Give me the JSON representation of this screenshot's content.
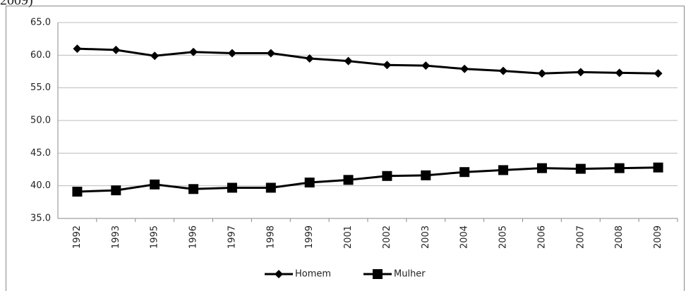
{
  "chart_data": {
    "type": "line",
    "title": "2009)",
    "categories": [
      "1992",
      "1993",
      "1995",
      "1996",
      "1997",
      "1998",
      "1999",
      "2001",
      "2002",
      "2003",
      "2004",
      "2005",
      "2006",
      "2007",
      "2008",
      "2009"
    ],
    "series": [
      {
        "name": "Homem",
        "color": "#000000",
        "marker": "diamond",
        "values": [
          61.0,
          60.8,
          59.9,
          60.5,
          60.3,
          60.3,
          59.5,
          59.1,
          58.5,
          58.4,
          57.9,
          57.6,
          57.2,
          57.4,
          57.3,
          57.2
        ]
      },
      {
        "name": "Mulher",
        "color": "#000000",
        "marker": "square",
        "values": [
          39.1,
          39.3,
          40.2,
          39.5,
          39.7,
          39.7,
          40.5,
          40.9,
          41.5,
          41.6,
          42.1,
          42.4,
          42.7,
          42.6,
          42.7,
          42.8
        ]
      }
    ],
    "ylim": [
      35,
      65
    ],
    "yticks": [
      {
        "value": 35,
        "label": "35.0"
      },
      {
        "value": 40,
        "label": "40.0"
      },
      {
        "value": 45,
        "label": "45.0"
      },
      {
        "value": 50,
        "label": "50.0"
      },
      {
        "value": 55,
        "label": "55.0"
      },
      {
        "value": 60,
        "label": "60.0"
      },
      {
        "value": 65,
        "label": "65.0"
      }
    ],
    "grid": true,
    "legend": "bottom"
  }
}
